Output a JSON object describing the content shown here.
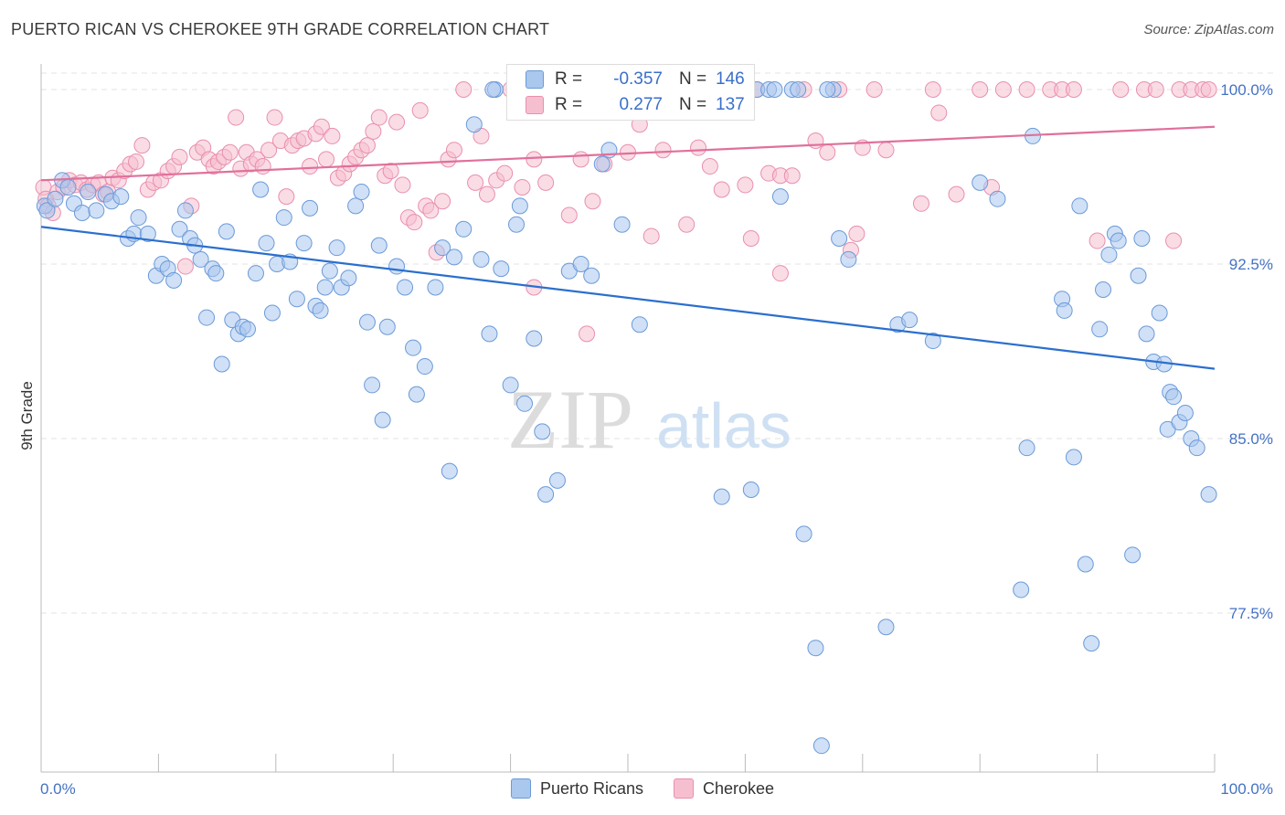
{
  "title": "PUERTO RICAN VS CHEROKEE 9TH GRADE CORRELATION CHART",
  "source": "Source: ZipAtlas.com",
  "watermark": {
    "zip": "ZIP",
    "atlas": "atlas"
  },
  "colors": {
    "blue_fill": "#aac7ee",
    "blue_stroke": "#6a9ad8",
    "blue_line": "#2b6fce",
    "pink_fill": "#f6bfd0",
    "pink_stroke": "#e98fae",
    "pink_line": "#e0709a",
    "tick_text": "#4472c4",
    "grid": "#e3e3e3"
  },
  "stats": {
    "series1": {
      "r_label": "R =",
      "r_value": "-0.357",
      "n_label": "N =",
      "n_value": "146"
    },
    "series2": {
      "r_label": "R =",
      "r_value": "0.277",
      "n_label": "N =",
      "n_value": "137"
    }
  },
  "legend": {
    "series1": "Puerto Ricans",
    "series2": "Cherokee"
  },
  "chart_data": {
    "type": "scatter",
    "title": "PUERTO RICAN VS CHEROKEE 9TH GRADE CORRELATION CHART",
    "xlabel": "",
    "ylabel": "9th Grade",
    "xlim": [
      0,
      100
    ],
    "ylim": [
      70.5,
      101.5
    ],
    "x_tick_labels": [
      "0.0%",
      "100.0%"
    ],
    "y_ticks": [
      77.5,
      85.0,
      92.5,
      100.0
    ],
    "y_tick_labels": [
      "77.5%",
      "85.0%",
      "92.5%",
      "100.0%"
    ],
    "grid": true,
    "legend_position": "bottom-center",
    "series": [
      {
        "name": "Puerto Ricans",
        "trend": {
          "x": [
            0,
            100
          ],
          "y": [
            94.1,
            88.0
          ]
        },
        "points": [
          [
            0.3,
            95.0
          ],
          [
            0.5,
            94.8
          ],
          [
            1.2,
            95.3
          ],
          [
            1.8,
            96.1
          ],
          [
            2.3,
            95.8
          ],
          [
            2.8,
            95.1
          ],
          [
            3.5,
            94.7
          ],
          [
            4.0,
            95.6
          ],
          [
            4.7,
            94.8
          ],
          [
            5.5,
            95.5
          ],
          [
            6.0,
            95.2
          ],
          [
            6.8,
            95.4
          ],
          [
            7.4,
            93.6
          ],
          [
            7.9,
            93.8
          ],
          [
            8.3,
            94.5
          ],
          [
            9.1,
            93.8
          ],
          [
            9.8,
            92.0
          ],
          [
            10.3,
            92.5
          ],
          [
            10.8,
            92.3
          ],
          [
            11.3,
            91.8
          ],
          [
            11.8,
            94.0
          ],
          [
            12.3,
            94.8
          ],
          [
            12.7,
            93.6
          ],
          [
            13.1,
            93.3
          ],
          [
            13.6,
            92.7
          ],
          [
            14.1,
            90.2
          ],
          [
            14.6,
            92.3
          ],
          [
            14.9,
            92.1
          ],
          [
            15.4,
            88.2
          ],
          [
            15.8,
            93.9
          ],
          [
            16.3,
            90.1
          ],
          [
            16.8,
            89.5
          ],
          [
            17.2,
            89.8
          ],
          [
            17.6,
            89.7
          ],
          [
            18.3,
            92.1
          ],
          [
            18.7,
            95.7
          ],
          [
            19.2,
            93.4
          ],
          [
            19.7,
            90.4
          ],
          [
            20.1,
            92.5
          ],
          [
            20.7,
            94.5
          ],
          [
            21.2,
            92.6
          ],
          [
            21.8,
            91.0
          ],
          [
            22.4,
            93.4
          ],
          [
            22.9,
            94.9
          ],
          [
            23.4,
            90.7
          ],
          [
            23.8,
            90.5
          ],
          [
            24.2,
            91.5
          ],
          [
            24.6,
            92.2
          ],
          [
            25.2,
            93.2
          ],
          [
            25.6,
            91.5
          ],
          [
            26.2,
            91.9
          ],
          [
            26.8,
            95.0
          ],
          [
            27.3,
            95.6
          ],
          [
            27.8,
            90.0
          ],
          [
            28.2,
            87.3
          ],
          [
            28.8,
            93.3
          ],
          [
            29.1,
            85.8
          ],
          [
            29.5,
            89.8
          ],
          [
            30.3,
            92.4
          ],
          [
            31.0,
            91.5
          ],
          [
            31.7,
            88.9
          ],
          [
            32.0,
            86.9
          ],
          [
            32.7,
            88.1
          ],
          [
            33.6,
            91.5
          ],
          [
            34.2,
            93.2
          ],
          [
            34.8,
            83.6
          ],
          [
            35.2,
            92.8
          ],
          [
            36.0,
            94.0
          ],
          [
            36.9,
            98.5
          ],
          [
            37.5,
            92.7
          ],
          [
            38.2,
            89.5
          ],
          [
            38.7,
            100.0
          ],
          [
            39.2,
            92.3
          ],
          [
            40.0,
            87.3
          ],
          [
            40.5,
            94.2
          ],
          [
            40.8,
            95.0
          ],
          [
            41.2,
            86.5
          ],
          [
            42.0,
            89.3
          ],
          [
            42.7,
            85.3
          ],
          [
            43.0,
            82.6
          ],
          [
            44.0,
            83.2
          ],
          [
            45.0,
            92.2
          ],
          [
            46.0,
            92.5
          ],
          [
            46.9,
            92.0
          ],
          [
            47.8,
            96.8
          ],
          [
            48.4,
            97.4
          ],
          [
            49.5,
            94.2
          ],
          [
            51.0,
            89.9
          ],
          [
            55.0,
            100.0
          ],
          [
            57.5,
            100.0
          ],
          [
            58.0,
            82.5
          ],
          [
            60.5,
            82.8
          ],
          [
            61.0,
            100.0
          ],
          [
            62.0,
            100.0
          ],
          [
            62.5,
            100.0
          ],
          [
            63.0,
            95.4
          ],
          [
            64.0,
            100.0
          ],
          [
            65.0,
            80.9
          ],
          [
            66.0,
            76.0
          ],
          [
            66.5,
            71.8
          ],
          [
            67.5,
            100.0
          ],
          [
            68.0,
            93.6
          ],
          [
            68.8,
            92.7
          ],
          [
            72.0,
            76.9
          ],
          [
            73.0,
            89.9
          ],
          [
            74.0,
            90.1
          ],
          [
            76.0,
            89.2
          ],
          [
            80.0,
            96.0
          ],
          [
            81.5,
            95.3
          ],
          [
            83.5,
            78.5
          ],
          [
            84.0,
            84.6
          ],
          [
            84.5,
            98.0
          ],
          [
            87.0,
            91.0
          ],
          [
            87.2,
            90.5
          ],
          [
            88.0,
            84.2
          ],
          [
            88.5,
            95.0
          ],
          [
            89.0,
            79.6
          ],
          [
            89.5,
            76.2
          ],
          [
            90.2,
            89.7
          ],
          [
            90.5,
            91.4
          ],
          [
            91.0,
            92.9
          ],
          [
            91.5,
            93.8
          ],
          [
            91.8,
            93.5
          ],
          [
            93.0,
            80.0
          ],
          [
            93.5,
            92.0
          ],
          [
            93.8,
            93.6
          ],
          [
            94.2,
            89.5
          ],
          [
            94.8,
            88.3
          ],
          [
            95.3,
            90.4
          ],
          [
            95.7,
            88.2
          ],
          [
            96.0,
            85.4
          ],
          [
            96.2,
            87.0
          ],
          [
            96.5,
            86.8
          ],
          [
            97.0,
            85.7
          ],
          [
            97.5,
            86.1
          ],
          [
            98.0,
            85.0
          ],
          [
            98.5,
            84.6
          ],
          [
            99.5,
            82.6
          ],
          [
            38.5,
            100.0
          ],
          [
            49.0,
            100.0
          ],
          [
            55.5,
            100.0
          ],
          [
            58.5,
            100.0
          ],
          [
            64.5,
            100.0
          ],
          [
            67.0,
            100.0
          ]
        ]
      },
      {
        "name": "Cherokee",
        "trend": {
          "x": [
            0,
            100
          ],
          "y": [
            96.1,
            98.4
          ]
        },
        "points": [
          [
            0.2,
            95.8
          ],
          [
            0.4,
            95.3
          ],
          [
            0.6,
            95.0
          ],
          [
            1.0,
            94.7
          ],
          [
            1.4,
            95.6
          ],
          [
            1.9,
            95.8
          ],
          [
            2.4,
            96.1
          ],
          [
            2.9,
            95.9
          ],
          [
            3.4,
            96.0
          ],
          [
            3.9,
            95.7
          ],
          [
            4.4,
            95.9
          ],
          [
            4.9,
            96.0
          ],
          [
            5.3,
            95.5
          ],
          [
            5.7,
            95.6
          ],
          [
            6.1,
            96.2
          ],
          [
            6.6,
            96.1
          ],
          [
            7.1,
            96.5
          ],
          [
            7.6,
            96.8
          ],
          [
            8.1,
            96.9
          ],
          [
            8.6,
            97.6
          ],
          [
            9.1,
            95.7
          ],
          [
            9.6,
            96.0
          ],
          [
            10.2,
            96.1
          ],
          [
            10.8,
            96.5
          ],
          [
            11.3,
            96.7
          ],
          [
            11.8,
            97.1
          ],
          [
            12.3,
            92.4
          ],
          [
            12.8,
            95.0
          ],
          [
            13.3,
            97.3
          ],
          [
            13.8,
            97.5
          ],
          [
            14.3,
            97.0
          ],
          [
            14.7,
            96.7
          ],
          [
            15.1,
            96.9
          ],
          [
            15.6,
            97.1
          ],
          [
            16.1,
            97.3
          ],
          [
            16.6,
            98.8
          ],
          [
            17.0,
            96.6
          ],
          [
            17.5,
            97.3
          ],
          [
            17.9,
            96.8
          ],
          [
            18.4,
            97.0
          ],
          [
            18.9,
            96.7
          ],
          [
            19.4,
            97.4
          ],
          [
            19.9,
            98.8
          ],
          [
            20.4,
            97.8
          ],
          [
            20.9,
            95.4
          ],
          [
            21.4,
            97.6
          ],
          [
            21.9,
            97.8
          ],
          [
            22.4,
            97.9
          ],
          [
            22.9,
            96.7
          ],
          [
            23.4,
            98.1
          ],
          [
            23.9,
            98.4
          ],
          [
            24.3,
            97.0
          ],
          [
            24.8,
            98.0
          ],
          [
            25.3,
            96.2
          ],
          [
            25.8,
            96.4
          ],
          [
            26.3,
            96.8
          ],
          [
            26.8,
            97.1
          ],
          [
            27.3,
            97.4
          ],
          [
            27.8,
            97.6
          ],
          [
            28.3,
            98.2
          ],
          [
            28.8,
            98.8
          ],
          [
            29.3,
            96.3
          ],
          [
            29.8,
            96.5
          ],
          [
            30.3,
            98.6
          ],
          [
            30.8,
            95.9
          ],
          [
            31.3,
            94.5
          ],
          [
            31.8,
            94.3
          ],
          [
            32.3,
            99.1
          ],
          [
            32.8,
            95.0
          ],
          [
            33.2,
            94.8
          ],
          [
            33.7,
            93.0
          ],
          [
            34.2,
            95.2
          ],
          [
            34.7,
            97.0
          ],
          [
            35.2,
            97.4
          ],
          [
            36.0,
            100.0
          ],
          [
            37.0,
            96.0
          ],
          [
            37.5,
            98.0
          ],
          [
            38.0,
            95.5
          ],
          [
            38.8,
            96.1
          ],
          [
            39.5,
            96.4
          ],
          [
            40.0,
            100.0
          ],
          [
            41.0,
            95.8
          ],
          [
            42.0,
            97.0
          ],
          [
            43.0,
            96.0
          ],
          [
            44.5,
            100.0
          ],
          [
            46.0,
            97.0
          ],
          [
            47.0,
            95.2
          ],
          [
            48.0,
            96.8
          ],
          [
            49.5,
            100.0
          ],
          [
            50.0,
            97.3
          ],
          [
            51.0,
            98.5
          ],
          [
            52.0,
            93.7
          ],
          [
            53.0,
            97.4
          ],
          [
            55.0,
            94.2
          ],
          [
            56.0,
            97.5
          ],
          [
            57.0,
            96.7
          ],
          [
            58.0,
            95.7
          ],
          [
            58.7,
            100.0
          ],
          [
            60.0,
            95.9
          ],
          [
            61.0,
            100.0
          ],
          [
            62.0,
            96.4
          ],
          [
            63.0,
            96.3
          ],
          [
            64.0,
            96.3
          ],
          [
            65.0,
            100.0
          ],
          [
            66.0,
            97.8
          ],
          [
            67.0,
            97.3
          ],
          [
            68.0,
            100.0
          ],
          [
            69.0,
            93.1
          ],
          [
            70.0,
            97.5
          ],
          [
            71.0,
            100.0
          ],
          [
            72.0,
            97.4
          ],
          [
            75.0,
            95.1
          ],
          [
            76.0,
            100.0
          ],
          [
            76.5,
            99.0
          ],
          [
            78.0,
            95.5
          ],
          [
            80.0,
            100.0
          ],
          [
            81.0,
            95.8
          ],
          [
            82.0,
            100.0
          ],
          [
            84.0,
            100.0
          ],
          [
            86.0,
            100.0
          ],
          [
            87.0,
            100.0
          ],
          [
            88.0,
            100.0
          ],
          [
            90.0,
            93.5
          ],
          [
            92.0,
            100.0
          ],
          [
            94.0,
            100.0
          ],
          [
            95.0,
            100.0
          ],
          [
            97.0,
            100.0
          ],
          [
            98.0,
            100.0
          ],
          [
            99.0,
            100.0
          ],
          [
            99.5,
            100.0
          ],
          [
            96.5,
            93.5
          ],
          [
            45.0,
            94.6
          ],
          [
            60.5,
            93.6
          ],
          [
            63.0,
            92.1
          ],
          [
            46.5,
            89.5
          ],
          [
            42.0,
            91.5
          ],
          [
            69.5,
            93.8
          ]
        ]
      }
    ]
  }
}
